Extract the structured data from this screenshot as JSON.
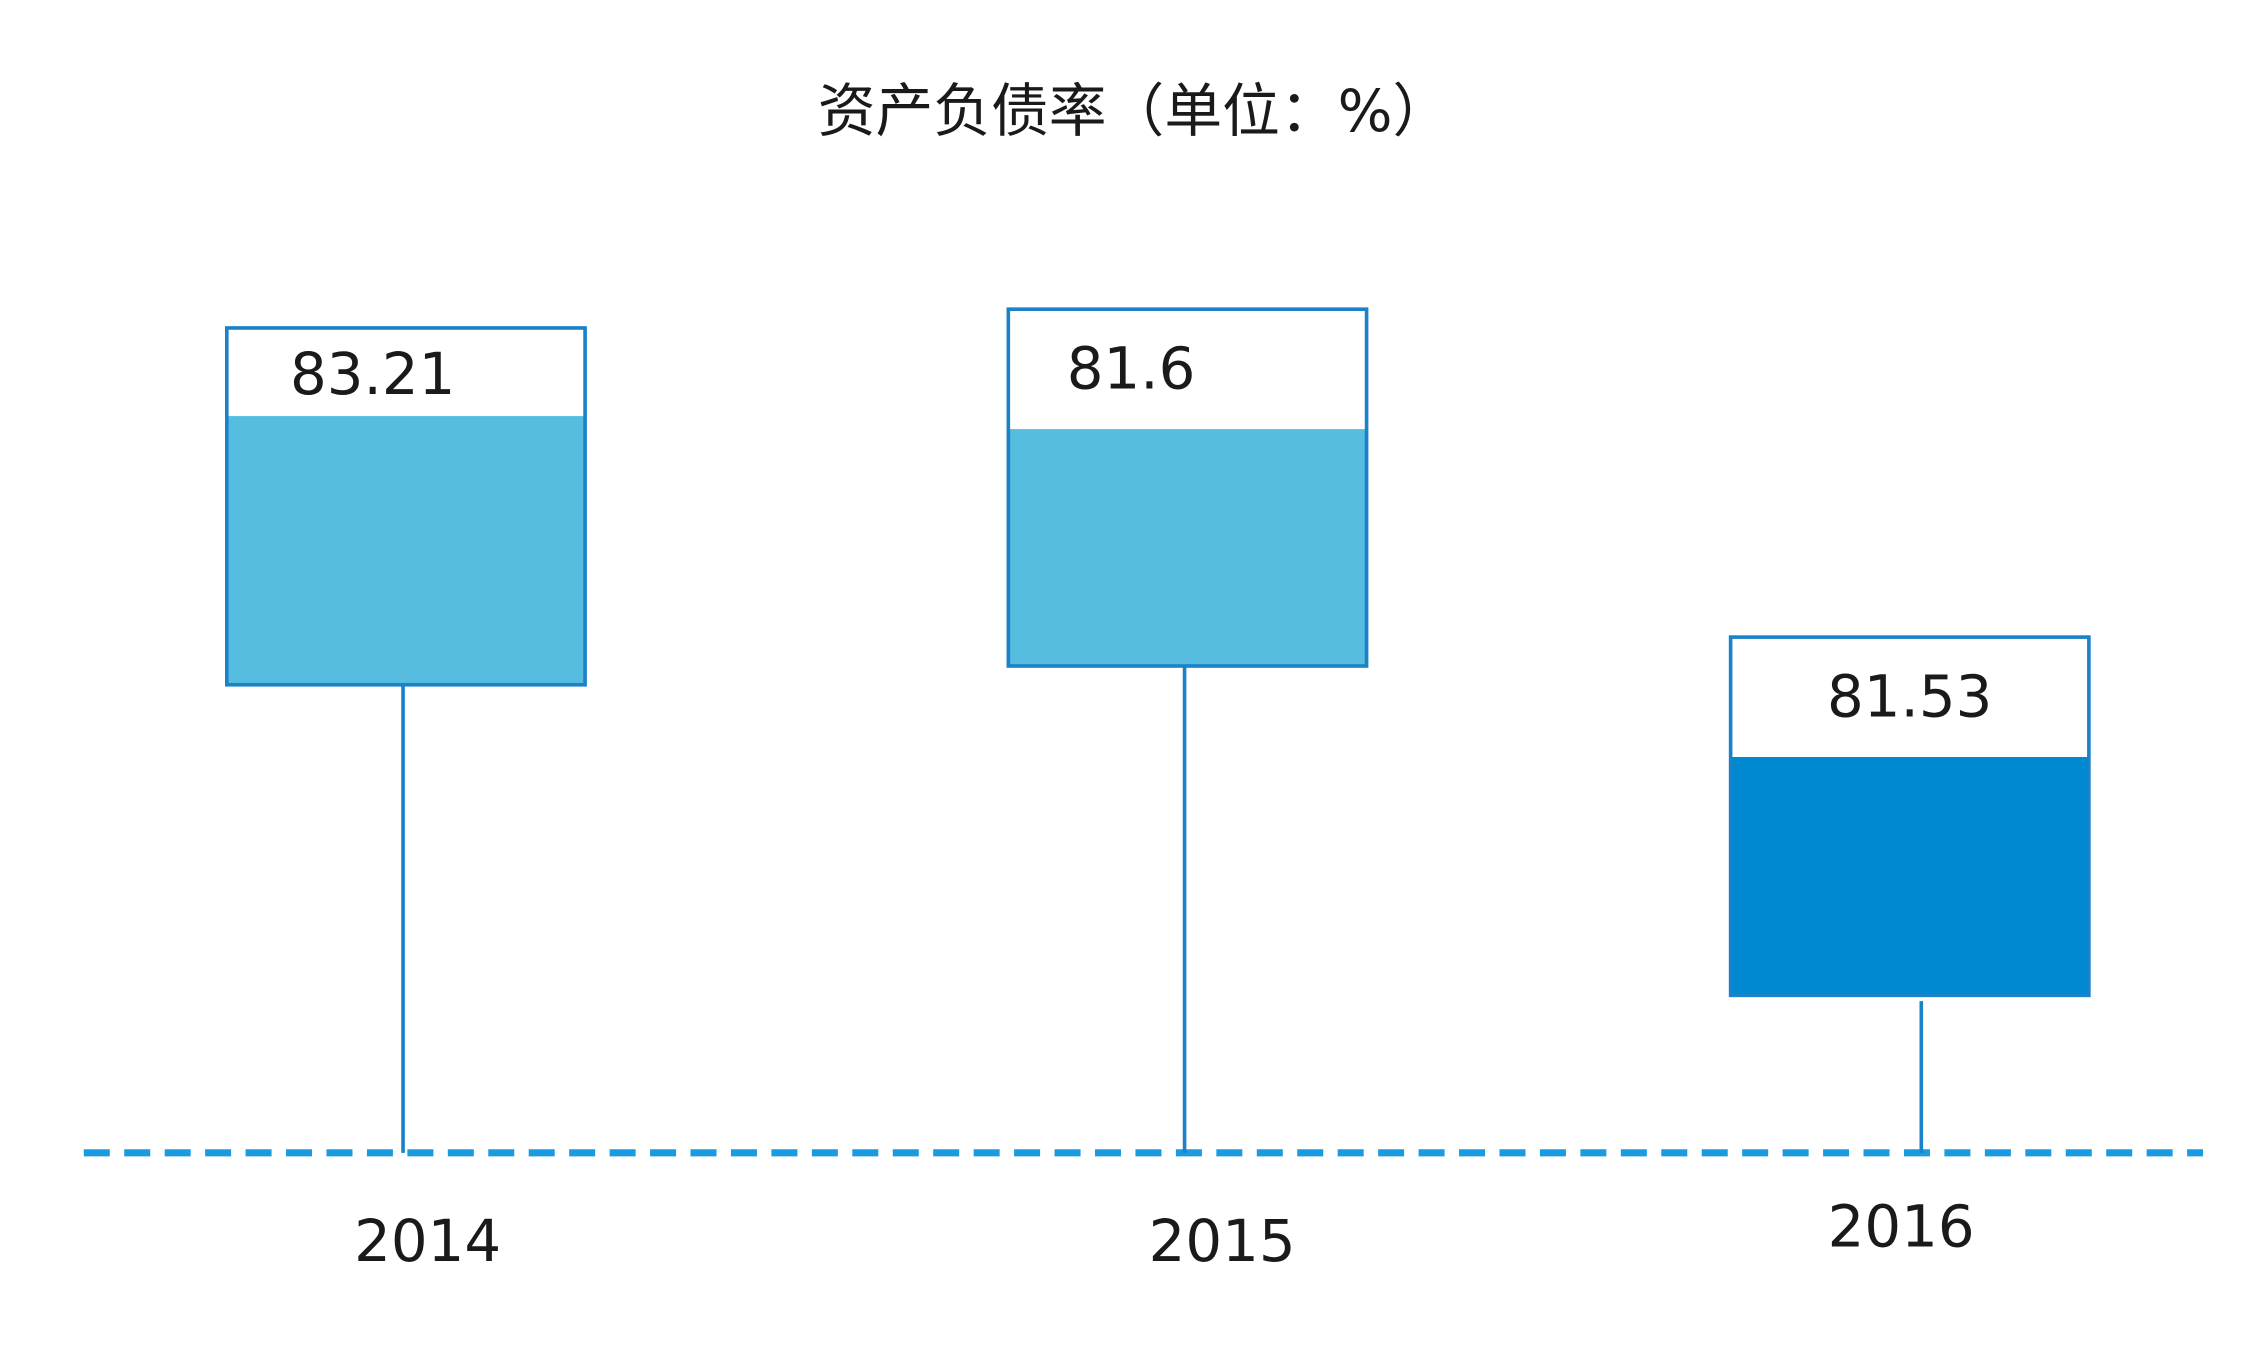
{
  "chart_data": {
    "type": "bar",
    "title": "资产负债率（单位：%）",
    "categories": [
      "2014",
      "2015",
      "2016"
    ],
    "values": [
      83.21,
      81.6,
      81.53
    ],
    "colors": [
      "#56bce0",
      "#56bce0",
      "#0089d1"
    ]
  }
}
